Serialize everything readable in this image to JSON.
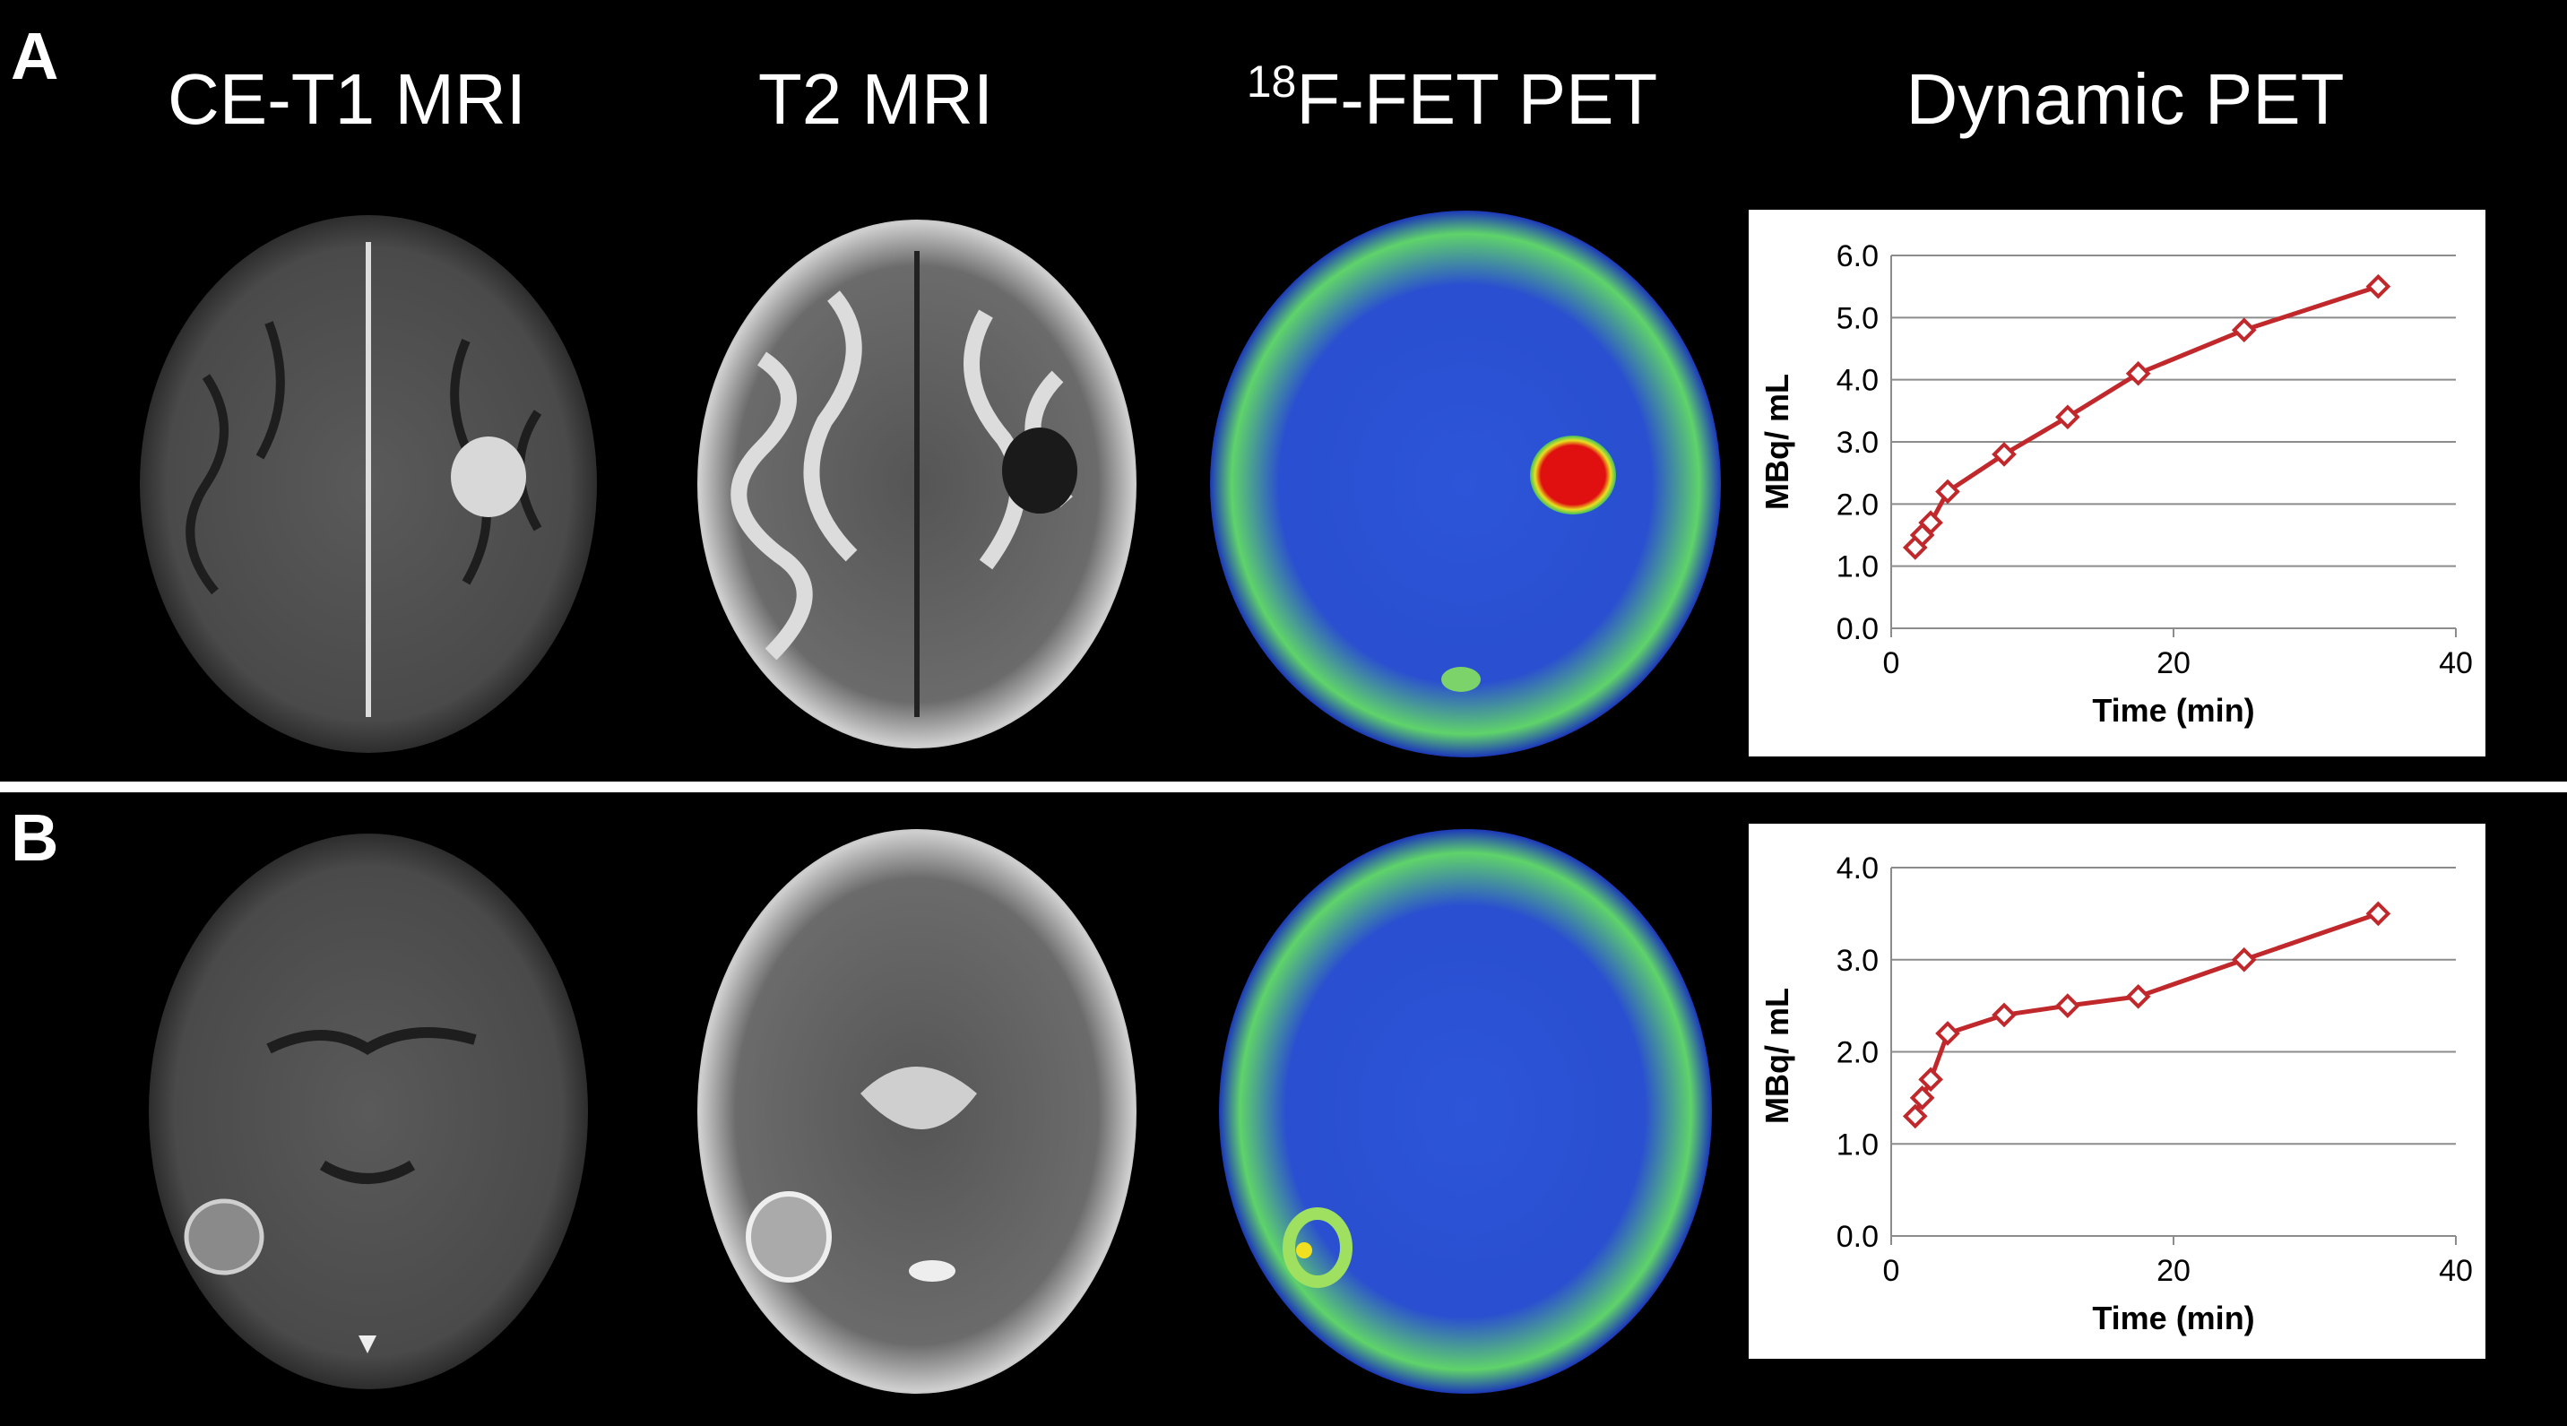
{
  "panel_labels": [
    "A",
    "B"
  ],
  "column_headers": [
    "CE-T1 MRI",
    "T2 MRI",
    {
      "sup": "18",
      "main": "F-FET PET"
    },
    "Dynamic PET"
  ],
  "chart_data": [
    {
      "type": "line",
      "xlabel": "Time (min)",
      "ylabel": "MBq/ mL",
      "color": "#c0282b",
      "x": [
        1.7,
        2.2,
        2.8,
        4,
        8,
        12.5,
        17.5,
        25,
        34.5
      ],
      "values": [
        1.3,
        1.5,
        1.7,
        2.2,
        2.8,
        3.4,
        4.1,
        4.8,
        5.5
      ],
      "xlim": [
        0,
        40
      ],
      "xticks": [
        0,
        20,
        40
      ],
      "ylim": [
        0,
        6
      ],
      "yticks": [
        {
          "value": 0,
          "label": "0.0"
        },
        {
          "value": 1,
          "label": "1.0"
        },
        {
          "value": 2,
          "label": "2.0"
        },
        {
          "value": 3,
          "label": "3.0"
        },
        {
          "value": 4,
          "label": "4.0"
        },
        {
          "value": 5,
          "label": "5.0"
        },
        {
          "value": 6,
          "label": "6.0"
        }
      ],
      "grid": true
    },
    {
      "type": "line",
      "xlabel": "Time (min)",
      "ylabel": "MBq/ mL",
      "color": "#c0282b",
      "x": [
        1.7,
        2.2,
        2.8,
        4,
        8,
        12.5,
        17.5,
        25,
        34.5
      ],
      "values": [
        1.3,
        1.5,
        1.7,
        2.2,
        2.4,
        2.5,
        2.6,
        3.0,
        3.5
      ],
      "xlim": [
        0,
        40
      ],
      "xticks": [
        0,
        20,
        40
      ],
      "ylim": [
        0,
        4
      ],
      "yticks": [
        {
          "value": 0,
          "label": "0.0"
        },
        {
          "value": 1,
          "label": "1.0"
        },
        {
          "value": 2,
          "label": "2.0"
        },
        {
          "value": 3,
          "label": "3.0"
        },
        {
          "value": 4,
          "label": "4.0"
        }
      ],
      "grid": true
    }
  ]
}
